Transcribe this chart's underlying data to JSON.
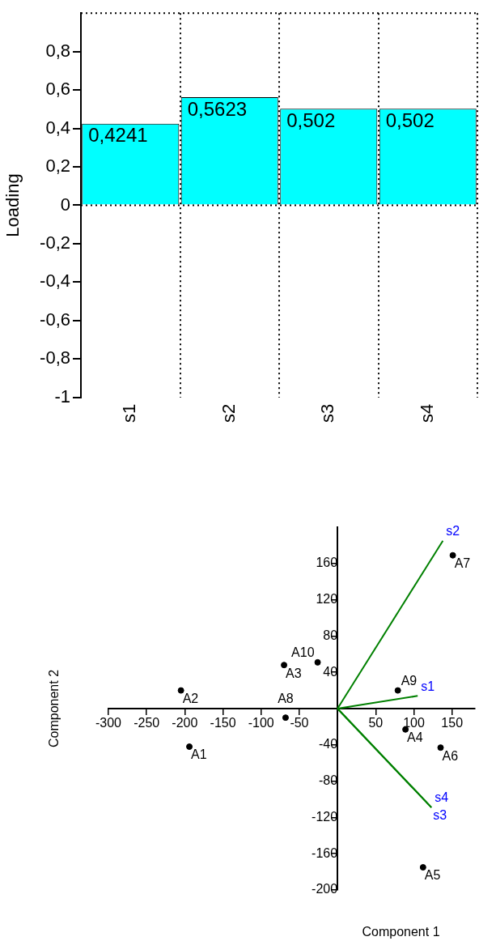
{
  "chart_data": [
    {
      "type": "bar",
      "ylabel": "Loading",
      "categories": [
        "s1",
        "s2",
        "s3",
        "s4"
      ],
      "values": [
        0.4241,
        0.5623,
        0.502,
        0.502
      ],
      "value_labels": [
        "0,4241",
        "0,5623",
        "0,502",
        "0,502"
      ],
      "color": "#00ffff",
      "ylim": [
        -1,
        1
      ],
      "yticks": [
        {
          "value": -1,
          "label": "-1"
        },
        {
          "value": -0.8,
          "label": "-0,8"
        },
        {
          "value": -0.6,
          "label": "-0,6"
        },
        {
          "value": -0.4,
          "label": "-0,4"
        },
        {
          "value": -0.2,
          "label": "-0,2"
        },
        0,
        {
          "value": 0.2,
          "label": "0,2"
        },
        {
          "value": 0.4,
          "label": "0,4"
        },
        {
          "value": 0.6,
          "label": "0,6"
        },
        {
          "value": 0.8,
          "label": "0,8"
        }
      ],
      "grid": "x",
      "ref_lines": [
        {
          "axis": "y",
          "value": 0,
          "line_style": "dotted"
        }
      ],
      "legend": false
    },
    {
      "type": "scatter",
      "xlabel": "Component 1",
      "ylabel": "Component 2",
      "xlim": [
        -300,
        180
      ],
      "ylim": [
        -200,
        200
      ],
      "xticks": [
        -300,
        -250,
        -200,
        -150,
        -100,
        -50,
        50,
        100,
        150
      ],
      "yticks": [
        -200,
        -160,
        -120,
        -80,
        -40,
        40,
        80,
        120,
        160
      ],
      "grid": false,
      "legend": false,
      "marker": "circle",
      "series": [
        {
          "type": "scatter",
          "color": "#000000",
          "x": [
            -194,
            -205,
            -70,
            89,
            112,
            135,
            151,
            -68,
            79,
            -26
          ],
          "values": [
            -42,
            20,
            48,
            -23,
            -175,
            -43,
            169,
            -10,
            20,
            51
          ]
        },
        {
          "type": "line",
          "name": "s1",
          "color": "#008000",
          "marker": "none",
          "x": [
            0,
            105
          ],
          "values": [
            0,
            14
          ]
        },
        {
          "type": "line",
          "name": "s2",
          "color": "#008000",
          "marker": "none",
          "x": [
            0,
            138
          ],
          "values": [
            0,
            185
          ]
        },
        {
          "type": "line",
          "name": "s3",
          "color": "#008000",
          "marker": "none",
          "x": [
            0,
            123
          ],
          "values": [
            0,
            -109
          ]
        },
        {
          "type": "line",
          "name": "s4",
          "color": "#008000",
          "marker": "none",
          "x": [
            0,
            123
          ],
          "values": [
            0,
            -109
          ]
        }
      ],
      "annotations": [
        {
          "text": "A1",
          "x": -194,
          "y": -42
        },
        {
          "text": "A2",
          "x": -205,
          "y": 20
        },
        {
          "text": "A3",
          "x": -70,
          "y": 48
        },
        {
          "text": "A4",
          "x": 89,
          "y": -23
        },
        {
          "text": "A5",
          "x": 112,
          "y": -175
        },
        {
          "text": "A6",
          "x": 135,
          "y": -43
        },
        {
          "text": "A7",
          "x": 151,
          "y": 169
        },
        {
          "text": "A8",
          "x": -68,
          "y": -10
        },
        {
          "text": "A9",
          "x": 79,
          "y": 20
        },
        {
          "text": "A10",
          "x": -26,
          "y": 51
        }
      ]
    }
  ]
}
